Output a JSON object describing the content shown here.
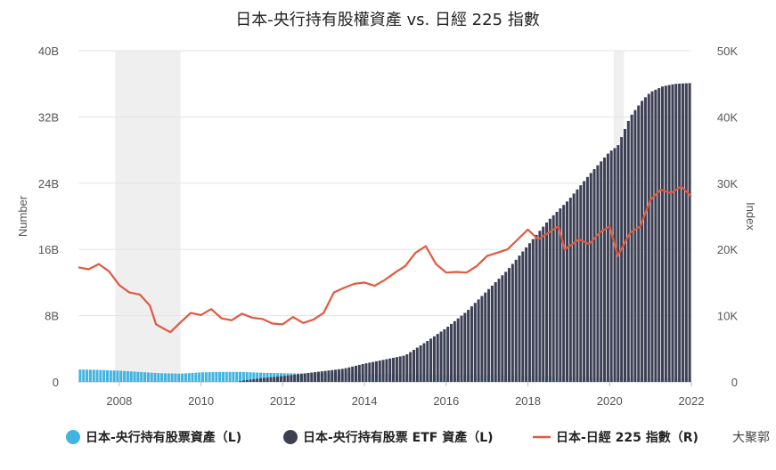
{
  "chart_data": {
    "type": "bar+line",
    "title": "日本-央行持有股權資產 vs. 日經 225 指數",
    "y_left_label": "Number",
    "y_right_label": "Index",
    "y_left_ticks": [
      "0",
      "8B",
      "16B",
      "24B",
      "32B",
      "40B"
    ],
    "y_right_ticks": [
      "0",
      "10K",
      "20K",
      "30K",
      "40K",
      "50K"
    ],
    "y_left_range": [
      0,
      40
    ],
    "y_right_range": [
      0,
      50000
    ],
    "x_range": [
      2007.0,
      2022.0
    ],
    "x_ticks": [
      "2008",
      "2010",
      "2012",
      "2014",
      "2016",
      "2018",
      "2020",
      "2022"
    ],
    "x_tick_values": [
      2008,
      2010,
      2012,
      2014,
      2016,
      2018,
      2020,
      2022
    ],
    "shaded_periods": [
      [
        2007.9,
        2009.5
      ],
      [
        2020.1,
        2020.35
      ]
    ],
    "gridlines": true,
    "legend_position": "bottom",
    "series": [
      {
        "name": "日本-央行持有股票資產（L)",
        "kind": "bar",
        "color": "#41b4e0",
        "points": [
          [
            2007.0,
            1.5
          ],
          [
            2007.5,
            1.45
          ],
          [
            2008.0,
            1.35
          ],
          [
            2008.5,
            1.2
          ],
          [
            2009.0,
            1.05
          ],
          [
            2009.5,
            1.0
          ],
          [
            2010.0,
            1.15
          ],
          [
            2010.5,
            1.2
          ],
          [
            2011.0,
            1.2
          ],
          [
            2011.5,
            1.1
          ],
          [
            2012.0,
            1.05
          ],
          [
            2012.5,
            1.0
          ],
          [
            2013.0,
            1.05
          ],
          [
            2013.5,
            1.05
          ],
          [
            2014.0,
            0.95
          ],
          [
            2015.0,
            0.9
          ],
          [
            2016.0,
            0.85
          ],
          [
            2017.0,
            0.8
          ],
          [
            2018.0,
            0.75
          ],
          [
            2019.0,
            0.65
          ],
          [
            2020.0,
            0.55
          ],
          [
            2021.0,
            0.5
          ],
          [
            2022.0,
            0.5
          ]
        ]
      },
      {
        "name": "日本-央行持有股票 ETF 資產（L)",
        "kind": "bar",
        "color": "#3d4055",
        "points": [
          [
            2010.9,
            0.0
          ],
          [
            2011.0,
            0.15
          ],
          [
            2011.5,
            0.45
          ],
          [
            2012.0,
            0.7
          ],
          [
            2012.5,
            1.0
          ],
          [
            2013.0,
            1.3
          ],
          [
            2013.5,
            1.6
          ],
          [
            2014.0,
            2.2
          ],
          [
            2014.5,
            2.7
          ],
          [
            2015.0,
            3.2
          ],
          [
            2015.5,
            4.8
          ],
          [
            2016.0,
            6.5
          ],
          [
            2016.5,
            8.5
          ],
          [
            2017.0,
            11.0
          ],
          [
            2017.5,
            13.5
          ],
          [
            2018.0,
            16.5
          ],
          [
            2018.5,
            19.5
          ],
          [
            2019.0,
            22.0
          ],
          [
            2019.5,
            25.0
          ],
          [
            2020.0,
            27.8
          ],
          [
            2020.2,
            28.5
          ],
          [
            2020.5,
            32.0
          ],
          [
            2020.8,
            34.0
          ],
          [
            2021.0,
            35.0
          ],
          [
            2021.3,
            35.7
          ],
          [
            2021.6,
            36.0
          ],
          [
            2022.0,
            36.1
          ]
        ]
      },
      {
        "name": "日本-日經 225 指數（R)",
        "kind": "line",
        "color": "#e05a40",
        "points": [
          [
            2007.0,
            17300
          ],
          [
            2007.25,
            17000
          ],
          [
            2007.5,
            17800
          ],
          [
            2007.75,
            16700
          ],
          [
            2008.0,
            14600
          ],
          [
            2008.25,
            13500
          ],
          [
            2008.5,
            13200
          ],
          [
            2008.75,
            11500
          ],
          [
            2008.9,
            8700
          ],
          [
            2009.1,
            8000
          ],
          [
            2009.25,
            7500
          ],
          [
            2009.5,
            9000
          ],
          [
            2009.75,
            10400
          ],
          [
            2010.0,
            10100
          ],
          [
            2010.25,
            11000
          ],
          [
            2010.5,
            9600
          ],
          [
            2010.75,
            9300
          ],
          [
            2011.0,
            10300
          ],
          [
            2011.25,
            9700
          ],
          [
            2011.5,
            9500
          ],
          [
            2011.75,
            8800
          ],
          [
            2012.0,
            8700
          ],
          [
            2012.25,
            9800
          ],
          [
            2012.5,
            8900
          ],
          [
            2012.75,
            9400
          ],
          [
            2013.0,
            10400
          ],
          [
            2013.25,
            13500
          ],
          [
            2013.5,
            14200
          ],
          [
            2013.75,
            14800
          ],
          [
            2014.0,
            15000
          ],
          [
            2014.25,
            14500
          ],
          [
            2014.5,
            15400
          ],
          [
            2014.75,
            16500
          ],
          [
            2015.0,
            17500
          ],
          [
            2015.25,
            19500
          ],
          [
            2015.5,
            20500
          ],
          [
            2015.75,
            17800
          ],
          [
            2016.0,
            16500
          ],
          [
            2016.25,
            16600
          ],
          [
            2016.5,
            16500
          ],
          [
            2016.75,
            17500
          ],
          [
            2017.0,
            19000
          ],
          [
            2017.25,
            19500
          ],
          [
            2017.5,
            20000
          ],
          [
            2017.75,
            21500
          ],
          [
            2018.0,
            23000
          ],
          [
            2018.25,
            21500
          ],
          [
            2018.5,
            22500
          ],
          [
            2018.75,
            23500
          ],
          [
            2018.9,
            20000
          ],
          [
            2019.25,
            21500
          ],
          [
            2019.5,
            20800
          ],
          [
            2019.75,
            22500
          ],
          [
            2020.0,
            23500
          ],
          [
            2020.2,
            19000
          ],
          [
            2020.5,
            22500
          ],
          [
            2020.75,
            23500
          ],
          [
            2021.0,
            27500
          ],
          [
            2021.25,
            29000
          ],
          [
            2021.5,
            28500
          ],
          [
            2021.75,
            29500
          ],
          [
            2022.0,
            28000
          ]
        ]
      }
    ]
  },
  "watermark": "大聚郭"
}
